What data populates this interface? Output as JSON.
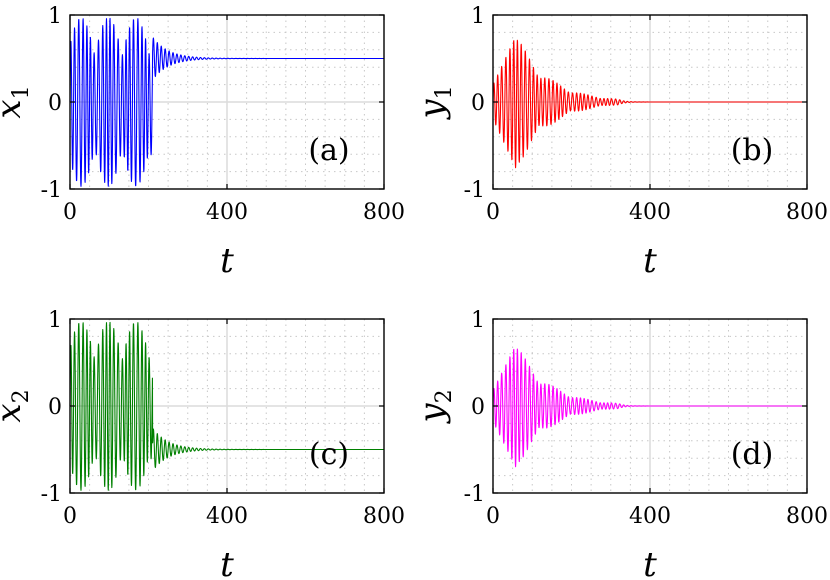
{
  "chart_data": [
    {
      "type": "line",
      "panel_tag": "(a)",
      "ylabel": "x",
      "ylabel_subscript": "1",
      "xlabel": "t",
      "xlim": [
        0,
        800
      ],
      "ylim": [
        -1,
        1
      ],
      "xticks": [
        "0",
        "400",
        "800"
      ],
      "yticks": [
        "1",
        "0",
        "-1"
      ],
      "grid": true,
      "color": "#0000ff",
      "signal": {
        "pre_switch_end": 210,
        "pre_amplitude": 0.97,
        "pre_center": 0.0,
        "settle_value": 0.5,
        "settle_start_amplitude": 0.25,
        "settle_decay_time": 40,
        "period": 10
      }
    },
    {
      "type": "line",
      "panel_tag": "(b)",
      "ylabel": "y",
      "ylabel_subscript": "1",
      "xlabel": "t",
      "xlim": [
        0,
        800
      ],
      "ylim": [
        -1,
        1
      ],
      "xticks": [
        "0",
        "400",
        "800"
      ],
      "yticks": [
        "1",
        "0",
        "-1"
      ],
      "grid": true,
      "color": "#ff0000",
      "signal": {
        "peak_time": 60,
        "peak_amplitude": 0.78,
        "settle_value": 0.0,
        "decay_end": 320,
        "period": 10
      }
    },
    {
      "type": "line",
      "panel_tag": "(c)",
      "ylabel": "x",
      "ylabel_subscript": "2",
      "xlabel": "t",
      "xlim": [
        0,
        800
      ],
      "ylim": [
        -1,
        1
      ],
      "xticks": [
        "0",
        "400",
        "800"
      ],
      "yticks": [
        "1",
        "0",
        "-1"
      ],
      "grid": true,
      "color": "#008000",
      "signal": {
        "pre_switch_end": 210,
        "pre_amplitude": 0.97,
        "pre_center": 0.0,
        "settle_value": -0.5,
        "settle_start_amplitude": 0.25,
        "settle_decay_time": 40,
        "period": 10
      }
    },
    {
      "type": "line",
      "panel_tag": "(d)",
      "ylabel": "y",
      "ylabel_subscript": "2",
      "xlabel": "t",
      "xlim": [
        0,
        800
      ],
      "ylim": [
        -1,
        1
      ],
      "xticks": [
        "0",
        "400",
        "800"
      ],
      "yticks": [
        "1",
        "0",
        "-1"
      ],
      "grid": true,
      "color": "#ff00ff",
      "signal": {
        "peak_time": 60,
        "peak_amplitude": 0.72,
        "settle_value": 0.0,
        "decay_end": 320,
        "period": 10
      }
    }
  ]
}
